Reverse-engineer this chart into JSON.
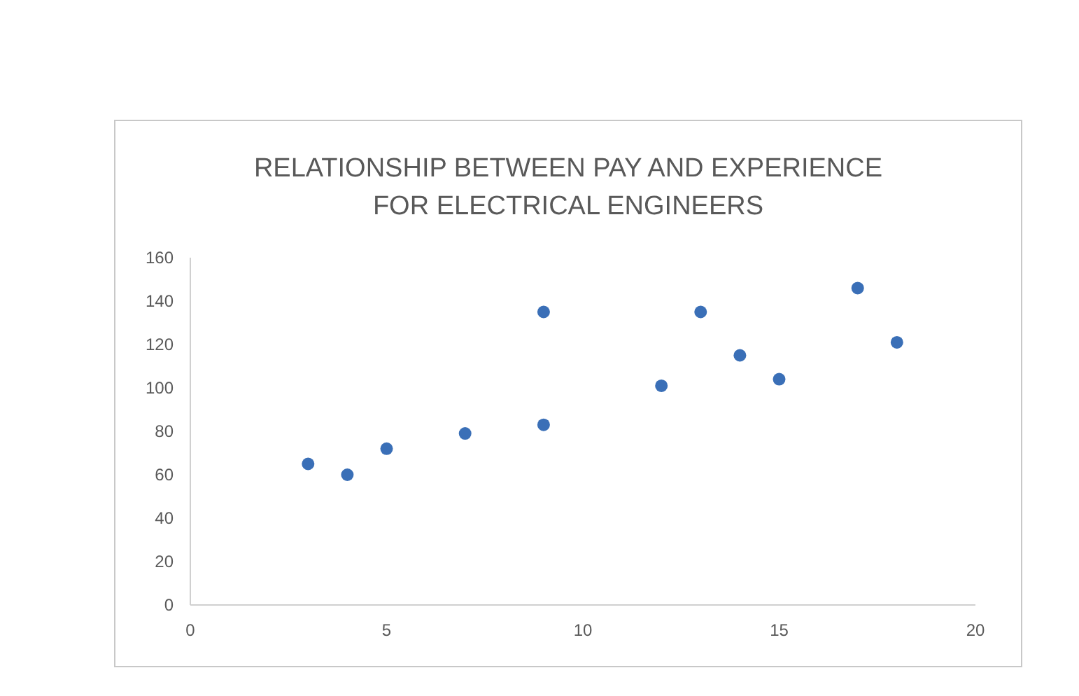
{
  "chart_data": {
    "type": "scatter",
    "title": "RELATIONSHIP BETWEEN PAY AND EXPERIENCE\nFOR ELECTRICAL ENGINEERS",
    "x": [
      3,
      4,
      5,
      7,
      9,
      9,
      12,
      13,
      14,
      15,
      17,
      18
    ],
    "series": [
      {
        "color": "#3a6fb7",
        "values": [
          65,
          60,
          72,
          79,
          83,
          135,
          101,
          135,
          115,
          104,
          146,
          121
        ]
      }
    ],
    "xlim": [
      0,
      20
    ],
    "xticks": [
      0,
      5,
      10,
      15,
      20
    ],
    "ylim": [
      0,
      160
    ],
    "yticks": [
      0,
      20,
      40,
      60,
      80,
      100,
      120,
      140,
      160
    ],
    "grid": false,
    "legend": false,
    "marker": "circle"
  }
}
